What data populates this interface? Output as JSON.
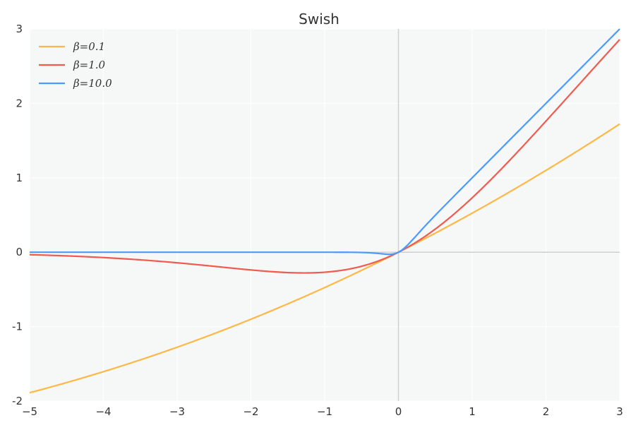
{
  "chart_data": {
    "type": "line",
    "title": "Swish",
    "xlabel": "",
    "ylabel": "",
    "xlim": [
      -5,
      3
    ],
    "ylim": [
      -2,
      3
    ],
    "grid": true,
    "legend_position": "top-left",
    "x_ticks": [
      -5,
      -4,
      -3,
      -2,
      -1,
      0,
      1,
      2,
      3
    ],
    "x_tick_labels": [
      "−5",
      "−4",
      "−3",
      "−2",
      "−1",
      "0",
      "1",
      "2",
      "3"
    ],
    "y_ticks": [
      -2,
      -1,
      0,
      1,
      2,
      3
    ],
    "y_tick_labels": [
      "-2",
      "-1",
      "0",
      "1",
      "2",
      "3"
    ],
    "function": "x * sigmoid(beta * x)",
    "series": [
      {
        "name": "β=0.1",
        "beta": 0.1,
        "color": "#ffb845",
        "x": [
          -5,
          -4,
          -3,
          -2,
          -1,
          0,
          1,
          2,
          3
        ],
        "y": [
          -1.89,
          -1.6,
          -1.28,
          -0.9,
          -0.48,
          0.0,
          0.52,
          1.1,
          1.72
        ]
      },
      {
        "name": "β=1.0",
        "beta": 1.0,
        "color": "#f05a4f",
        "x": [
          -5,
          -4,
          -3,
          -2,
          -1.28,
          -1,
          -0.5,
          0,
          0.5,
          1,
          2,
          3
        ],
        "y": [
          -0.03,
          -0.07,
          -0.14,
          -0.24,
          -0.28,
          -0.27,
          -0.19,
          0.0,
          0.31,
          0.73,
          1.76,
          2.86
        ]
      },
      {
        "name": "β=10.0",
        "beta": 10.0,
        "color": "#4a9aff",
        "x": [
          -5,
          -1,
          -0.5,
          -0.2,
          -0.1,
          0,
          0.1,
          0.2,
          0.5,
          1,
          2,
          3
        ],
        "y": [
          0.0,
          0.0,
          -0.003,
          -0.024,
          -0.027,
          0.0,
          0.073,
          0.18,
          0.5,
          1.0,
          2.0,
          3.0
        ]
      }
    ]
  }
}
